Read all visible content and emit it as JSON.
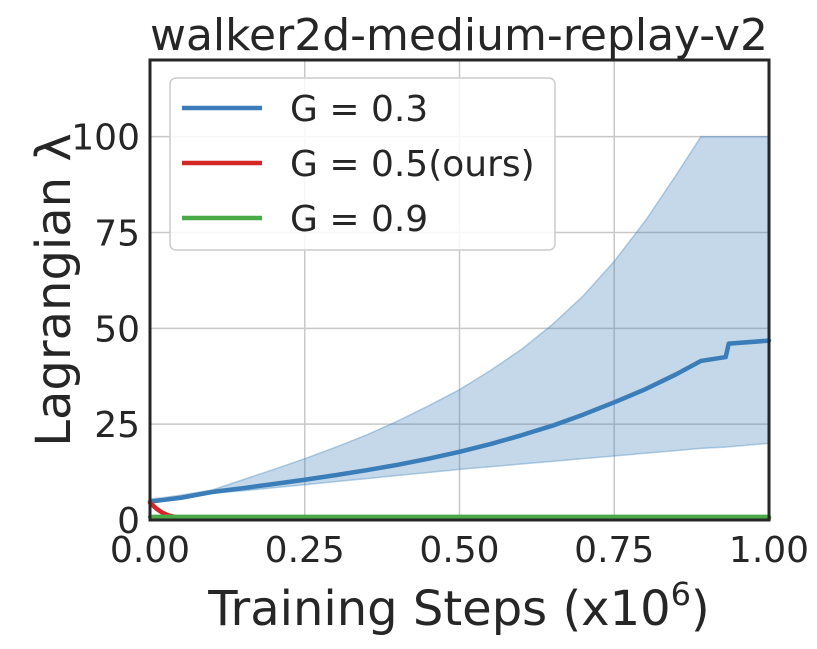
{
  "chart_data": {
    "type": "line",
    "title": "walker2d-medium-replay-v2",
    "xlabel": "Training Steps (x10",
    "xlabel_exponent": "6",
    "xlabel_close": ")",
    "ylabel": "Lagrangian λ",
    "xlim": [
      0,
      1.0
    ],
    "ylim": [
      0,
      120
    ],
    "xticks": [
      0,
      0.25,
      0.5,
      0.75,
      1.0
    ],
    "xtick_labels": [
      "0.00",
      "0.25",
      "0.50",
      "0.75",
      "1.00"
    ],
    "yticks": [
      0,
      25,
      50,
      75,
      100
    ],
    "ytick_labels": [
      "0",
      "25",
      "50",
      "75",
      "100"
    ],
    "grid": true,
    "legend_position": "top-left",
    "series": [
      {
        "name": "G = 0.3",
        "legend_label": "G = 0.3",
        "color": "#3a7db8",
        "x": [
          0,
          0.02,
          0.05,
          0.1,
          0.15,
          0.2,
          0.25,
          0.3,
          0.35,
          0.4,
          0.45,
          0.5,
          0.55,
          0.6,
          0.65,
          0.7,
          0.75,
          0.8,
          0.85,
          0.89,
          0.93,
          0.935,
          1.0
        ],
        "y": [
          4.8,
          5.2,
          5.8,
          7.3,
          8.3,
          9.4,
          10.5,
          11.7,
          13.0,
          14.4,
          16.0,
          17.8,
          19.8,
          22.1,
          24.6,
          27.5,
          30.7,
          34.1,
          38.0,
          41.5,
          42.5,
          46.0,
          46.8
        ],
        "band_upper": [
          5.5,
          5.8,
          6.5,
          7.8,
          10.5,
          13.2,
          16.0,
          19.0,
          22.2,
          25.8,
          29.8,
          34.0,
          39.0,
          44.5,
          51.0,
          58.5,
          67.5,
          78.0,
          90.0,
          100.0,
          100.0,
          100.0,
          100.0
        ],
        "band_lower": [
          4.6,
          5.0,
          5.5,
          7.0,
          7.6,
          8.4,
          9.2,
          10.0,
          10.8,
          11.6,
          12.4,
          13.2,
          13.9,
          14.6,
          15.3,
          16.0,
          16.7,
          17.4,
          18.1,
          18.7,
          19.0,
          19.1,
          20.0
        ]
      },
      {
        "name": "G = 0.5(ours)",
        "legend_label": "G = 0.5(ours)",
        "color": "#d62728",
        "x": [
          0,
          0.01,
          0.02,
          0.03,
          0.04,
          0.05,
          1.0
        ],
        "y": [
          4.5,
          3.0,
          1.9,
          1.2,
          0.8,
          0.6,
          0.5
        ]
      },
      {
        "name": "G = 0.9",
        "legend_label": "G = 0.9",
        "color": "#4aaa48",
        "x": [
          0,
          1.0
        ],
        "y": [
          0.8,
          0.8
        ]
      }
    ]
  }
}
